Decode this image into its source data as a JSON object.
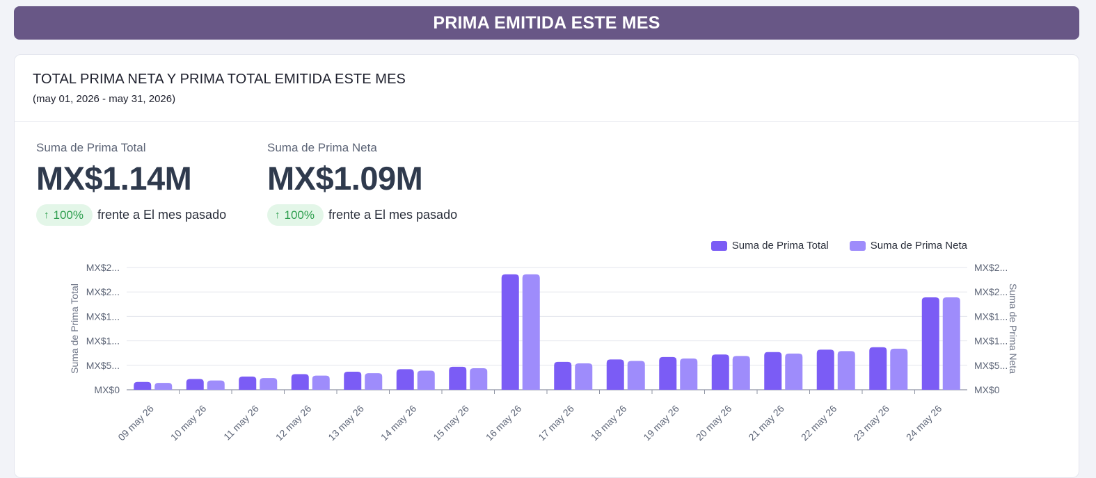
{
  "banner": {
    "title": "PRIMA EMITIDA ESTE MES"
  },
  "card": {
    "title": "TOTAL PRIMA NETA Y PRIMA TOTAL EMITIDA ESTE MES",
    "subtitle": "(may 01, 2026 - may 31, 2026)"
  },
  "kpis": [
    {
      "label": "Suma de Prima Total",
      "value": "MX$1.14M",
      "badge": "100%",
      "badge_icon": "arrow-up-icon",
      "compare": "frente a El mes pasado"
    },
    {
      "label": "Suma de Prima Neta",
      "value": "MX$1.09M",
      "badge": "100%",
      "badge_icon": "arrow-up-icon",
      "compare": "frente a El mes pasado"
    }
  ],
  "colors": {
    "banner": "#685786",
    "series_total": "#7b5cf5",
    "series_neta": "#9e8cfb",
    "badge_bg": "#e3f6e8",
    "badge_text": "#2e9e4e"
  },
  "chart_data": {
    "type": "bar",
    "categories": [
      "09 may 26",
      "10 may 26",
      "11 may 26",
      "12 may 26",
      "13 may 26",
      "14 may 26",
      "15 may 26",
      "16 may 26",
      "17 may 26",
      "18 may 26",
      "19 may 26",
      "20 may 26",
      "21 may 26",
      "22 may 26",
      "23 may 26",
      "24 may 26"
    ],
    "series": [
      {
        "name": "Suma de Prima Total",
        "axis": "left",
        "values": [
          16000,
          22000,
          27000,
          32000,
          37000,
          42000,
          47000,
          236000,
          57000,
          62000,
          67000,
          72000,
          77000,
          82000,
          87000,
          189000
        ]
      },
      {
        "name": "Suma de Prima Neta",
        "axis": "right",
        "values": [
          14000,
          19000,
          24000,
          29000,
          34000,
          39000,
          44000,
          236000,
          54000,
          59000,
          64000,
          69000,
          74000,
          79000,
          84000,
          189000
        ]
      }
    ],
    "ylabel_left": "Suma de Prima Total",
    "ylabel_right": "Suma de Prima Neta",
    "ylim": [
      0,
      250000
    ],
    "yticks_left": [
      "MX$0",
      "MX$5...",
      "MX$1...",
      "MX$1...",
      "MX$2...",
      "MX$2..."
    ],
    "yticks_right": [
      "MX$0",
      "MX$5...",
      "MX$1...",
      "MX$1...",
      "MX$2...",
      "MX$2..."
    ],
    "grid": true,
    "legend_position": "top-right"
  }
}
